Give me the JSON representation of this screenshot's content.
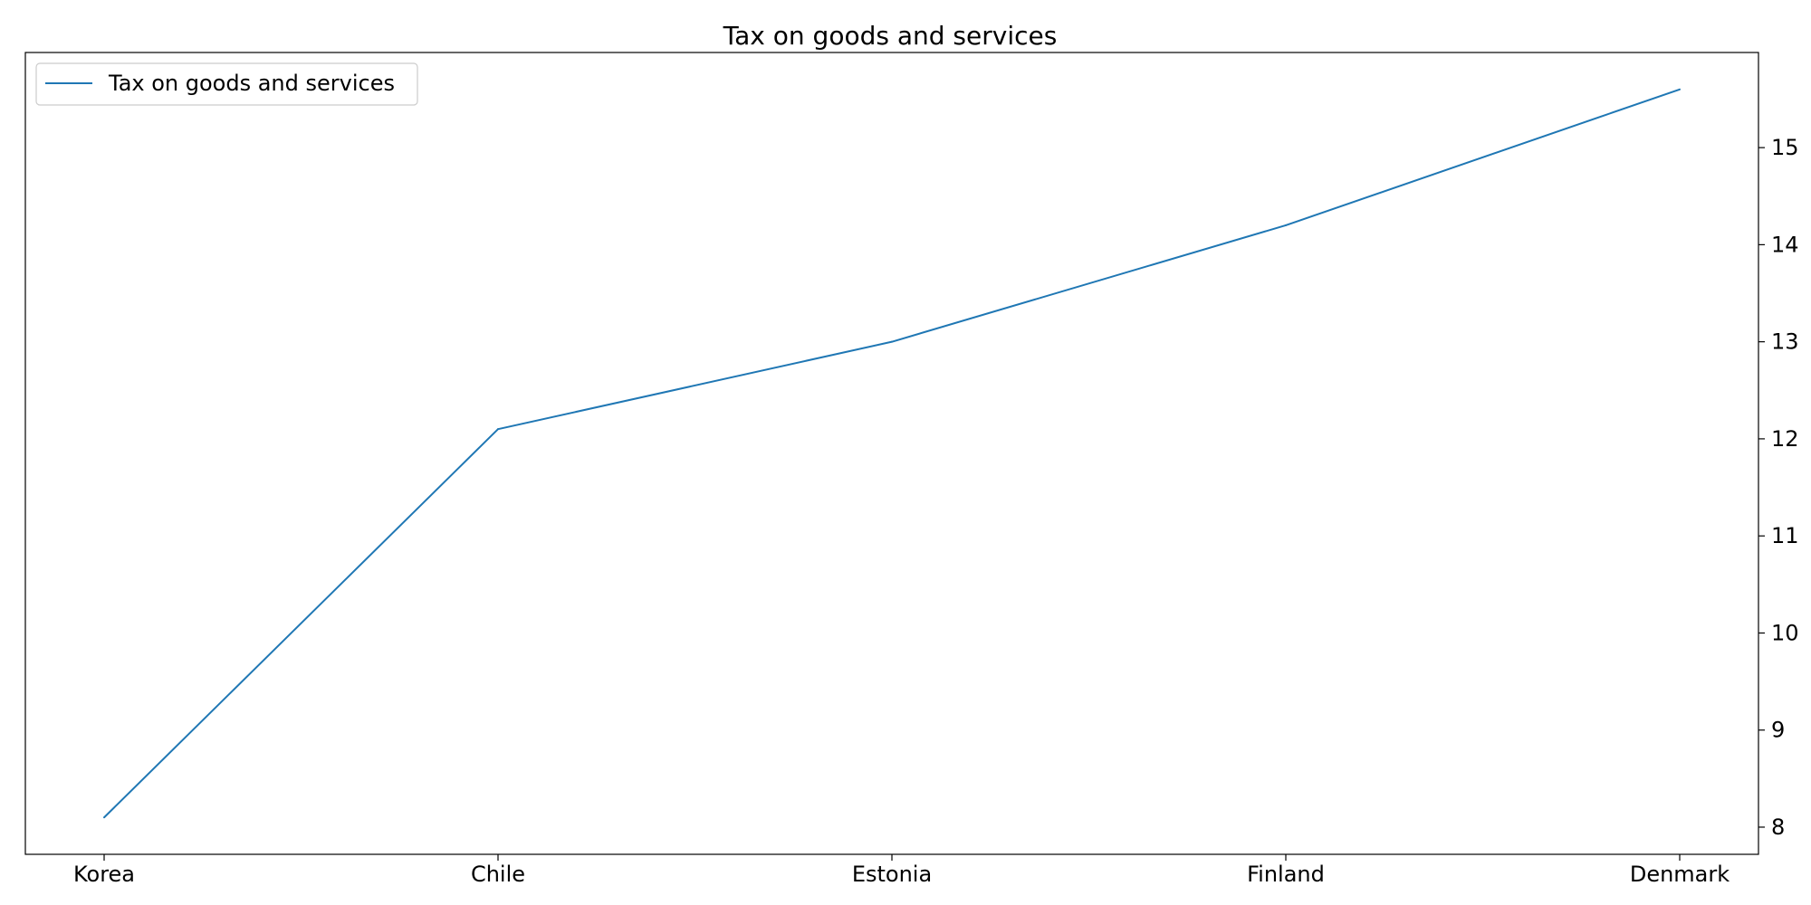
{
  "chart_data": {
    "type": "line",
    "title": "Tax on goods and services",
    "xlabel": "",
    "ylabel": "",
    "categories": [
      "Korea",
      "Chile",
      "Estonia",
      "Finland",
      "Denmark"
    ],
    "series": [
      {
        "name": "Tax on goods and services",
        "values": [
          8.1,
          12.1,
          13.0,
          14.2,
          15.6
        ],
        "color": "#1f77b4"
      }
    ],
    "ylim": [
      7.72,
      15.98
    ],
    "yticks": [
      8,
      9,
      10,
      11,
      12,
      13,
      14,
      15
    ],
    "y_axis_side": "right",
    "grid": false,
    "legend_position": "top-left"
  }
}
